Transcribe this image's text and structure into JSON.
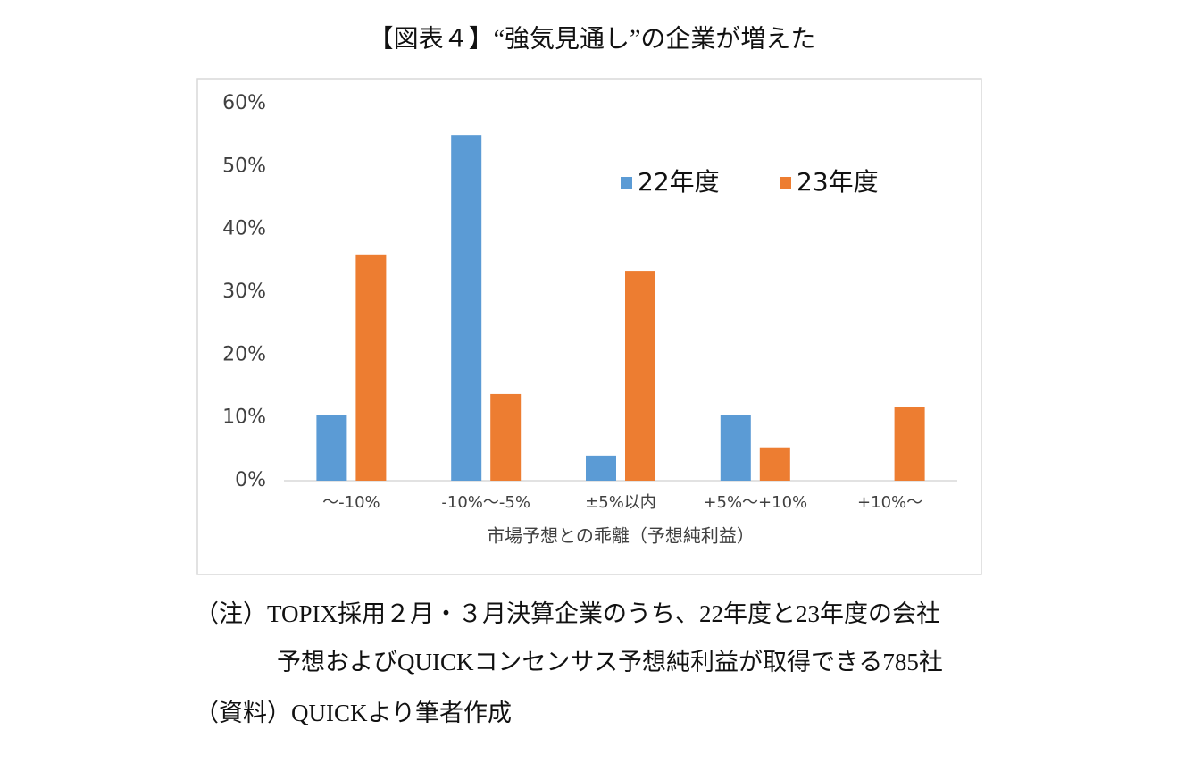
{
  "chart_data": {
    "type": "bar",
    "title": "【図表４】“強気見通し”の企業が増えた",
    "x_label": "市場予想との乖離（予想純利益）",
    "categories": [
      "～-10%",
      "-10%～-5%",
      "±5%以内",
      "+5%～+10%",
      "+10%～"
    ],
    "series": [
      {
        "name": "22年度",
        "color": "#5b9bd5",
        "values": [
          10.5,
          55,
          4,
          10.5,
          0
        ]
      },
      {
        "name": "23年度",
        "color": "#ed7d31",
        "values": [
          36,
          13.8,
          33.4,
          5.3,
          11.7
        ]
      }
    ],
    "ylim": [
      0,
      60
    ],
    "yticks": [
      {
        "value": 0,
        "label": "0%"
      },
      {
        "value": 10,
        "label": "10%"
      },
      {
        "value": 20,
        "label": "20%"
      },
      {
        "value": 30,
        "label": "30%"
      },
      {
        "value": 40,
        "label": "40%"
      },
      {
        "value": 50,
        "label": "50%"
      },
      {
        "value": 60,
        "label": "60%"
      }
    ],
    "grid": false,
    "legend": "top-right"
  },
  "notes": [
    "（注）TOPIX採用２月・３月決算企業のうち、22年度と23年度の会社",
    "予想およびQUICKコンセンサス予想純利益が取得できる785社",
    "（資料）QUICKより筆者作成"
  ]
}
